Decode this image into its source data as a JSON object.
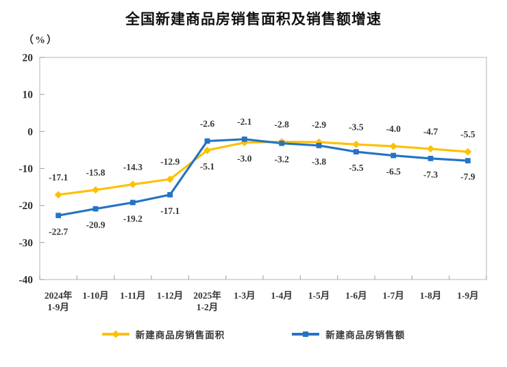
{
  "chart_data": {
    "type": "line",
    "title": "全国新建商品房销售面积及销售额增速",
    "unit_label": "（%）",
    "categories": [
      "2024年\n1-9月",
      "1-10月",
      "1-11月",
      "1-12月",
      "2025年\n1-2月",
      "1-3月",
      "1-4月",
      "1-5月",
      "1-6月",
      "1-7月",
      "1-8月",
      "1-9月"
    ],
    "series": [
      {
        "name": "新建商品房销售面积",
        "color": "#FFC000",
        "marker": "diamond",
        "values": [
          -17.1,
          -15.8,
          -14.3,
          -12.9,
          -5.1,
          -3.0,
          -2.8,
          -2.9,
          -3.5,
          -4.0,
          -4.7,
          -5.5
        ]
      },
      {
        "name": "新建商品房销售额",
        "color": "#2473C5",
        "marker": "square",
        "values": [
          -22.7,
          -20.9,
          -19.2,
          -17.1,
          -2.6,
          -2.1,
          -3.2,
          -3.8,
          -5.5,
          -6.5,
          -7.3,
          -7.9
        ]
      }
    ],
    "ylim": [
      -40,
      20
    ],
    "yticks": [
      20,
      10,
      0,
      -10,
      -20,
      -30,
      -40
    ],
    "grid": false,
    "data_labels": true,
    "legend_position": "bottom"
  },
  "style": {
    "plot_border_color": "#C6C6C6",
    "tick_color": "#ABABAB",
    "text_color": "#343434"
  }
}
